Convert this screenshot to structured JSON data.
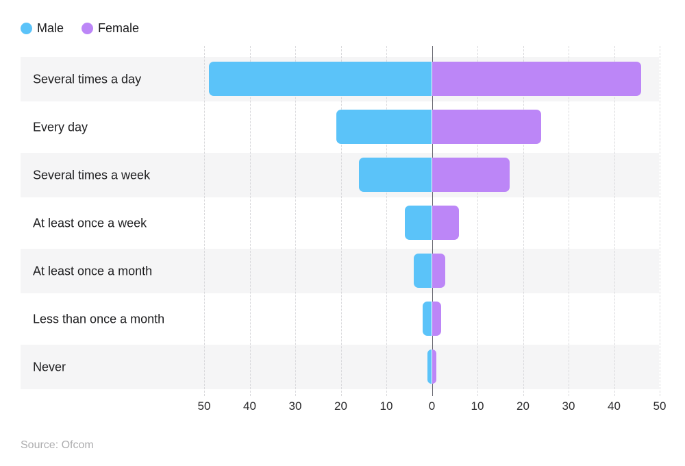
{
  "legend": {
    "items": [
      {
        "label": "Male",
        "color": "#5BC3F9"
      },
      {
        "label": "Female",
        "color": "#BC86F7"
      }
    ]
  },
  "source": {
    "text": "Source: Ofcom"
  },
  "chart_data": {
    "type": "bar",
    "variant": "diverging-horizontal",
    "categories": [
      "Several times a day",
      "Every day",
      "Several times a week",
      "At least once a week",
      "At least once a month",
      "Less than once a month",
      "Never"
    ],
    "series": [
      {
        "name": "Male",
        "color": "#5BC3F9",
        "direction": "left",
        "values": [
          49,
          21,
          16,
          6,
          4,
          2,
          1
        ]
      },
      {
        "name": "Female",
        "color": "#BC86F7",
        "direction": "right",
        "values": [
          46,
          24,
          17,
          6,
          3,
          2,
          1
        ]
      }
    ],
    "axis": {
      "tick_labels": [
        "50",
        "40",
        "30",
        "20",
        "10",
        "0",
        "10",
        "20",
        "30",
        "40",
        "50"
      ],
      "max_each_side": 50
    },
    "style": {
      "row_alt_color": "#F5F5F6",
      "gridline_color": "#D9D9DC",
      "zero_line_color": "#64646E",
      "grid": "dashed-vertical",
      "legend_position": "top-left"
    },
    "title": "",
    "xlabel": "",
    "ylabel": ""
  }
}
